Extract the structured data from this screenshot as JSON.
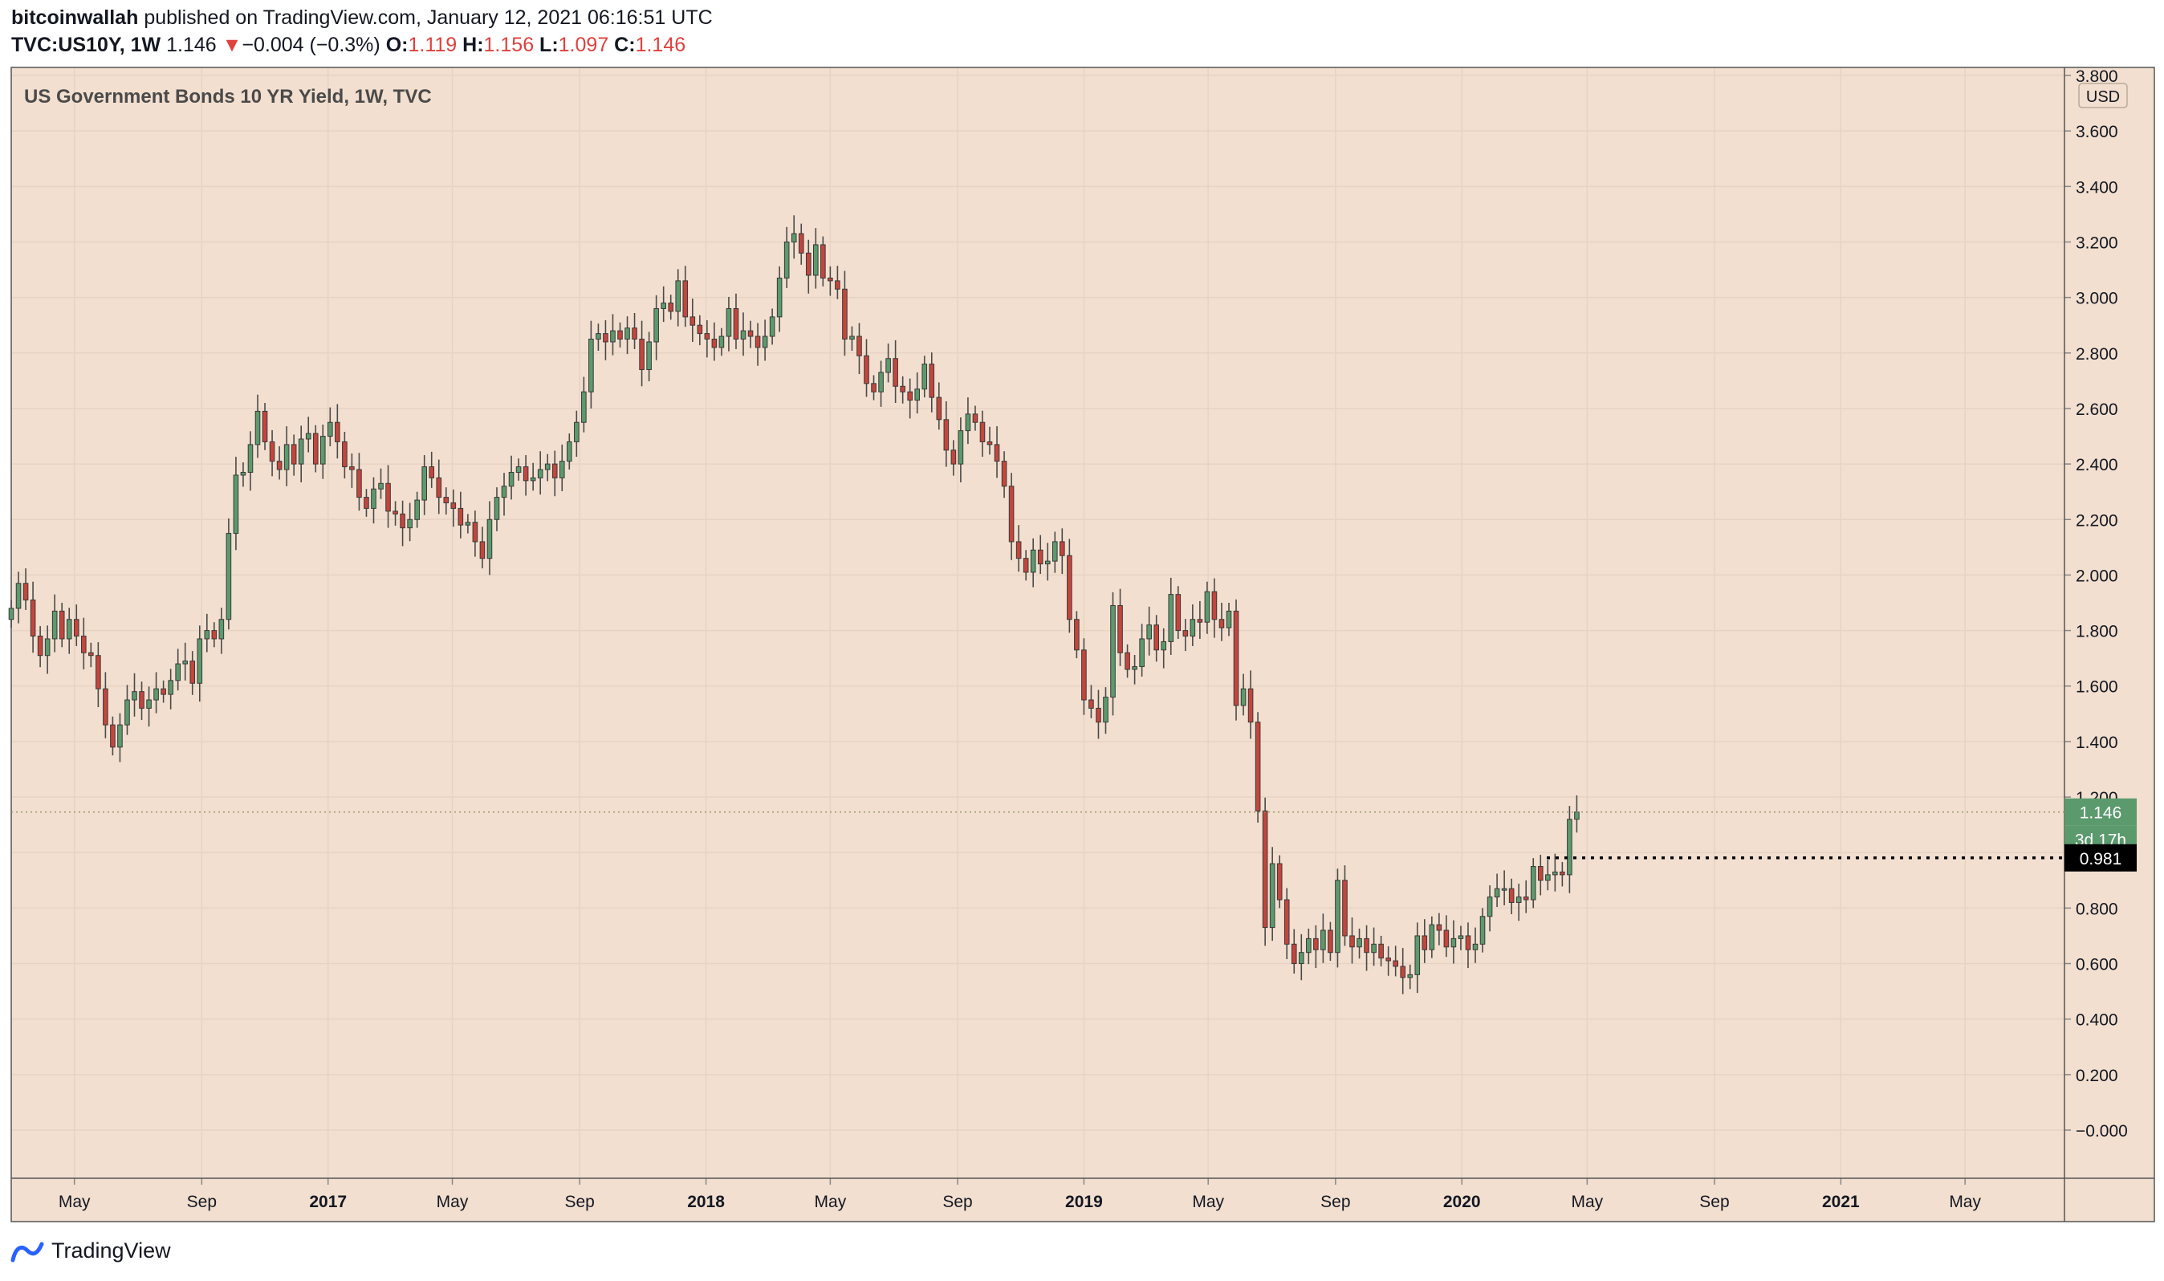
{
  "header": {
    "author": "bitcoinwallah",
    "published_text": "published on TradingView.com, January 12, 2021 06:16:51 UTC",
    "symbol": "TVC:US10Y, 1W",
    "last": "1.146",
    "change_arrow": "▼",
    "change": "−0.004 (−0.3%)",
    "o_label": "O:",
    "o_value": "1.119",
    "h_label": "H:",
    "h_value": "1.156",
    "l_label": "L:",
    "l_value": "1.097",
    "c_label": "C:",
    "c_value": "1.146"
  },
  "footer": {
    "brand": "TradingView",
    "logo_icon": "tradingview-logo-icon"
  },
  "colors": {
    "background": "#f2dfcf",
    "up": "#5b9a6d",
    "down": "#c4453d",
    "wick": "#4a4a4a",
    "grid": "#e8d3c3",
    "text": "#131722",
    "price_label_up": "#5b9a6d",
    "level_label": "#000000"
  },
  "chart_data": {
    "type": "candlestick",
    "title": "US Government Bonds 10 YR Yield, 1W, TVC",
    "currency": "USD",
    "ylim": [
      -0.18,
      3.8
    ],
    "y_ticks": [
      "3.800",
      "3.600",
      "3.400",
      "3.200",
      "3.000",
      "2.800",
      "2.600",
      "2.400",
      "2.200",
      "2.000",
      "1.800",
      "1.600",
      "1.400",
      "1.200",
      "1.000",
      "0.800",
      "0.600",
      "0.400",
      "0.200",
      "−0.000"
    ],
    "x_range": [
      "2016-03-01",
      "2021-08-05"
    ],
    "x_ticks": [
      {
        "date": "2016-05-01",
        "label": "May"
      },
      {
        "date": "2016-09-01",
        "label": "Sep"
      },
      {
        "date": "2017-01-01",
        "label": "2017"
      },
      {
        "date": "2017-05-01",
        "label": "May"
      },
      {
        "date": "2017-09-01",
        "label": "Sep"
      },
      {
        "date": "2018-01-01",
        "label": "2018"
      },
      {
        "date": "2018-05-01",
        "label": "May"
      },
      {
        "date": "2018-09-01",
        "label": "Sep"
      },
      {
        "date": "2019-01-01",
        "label": "2019"
      },
      {
        "date": "2019-05-01",
        "label": "May"
      },
      {
        "date": "2019-09-01",
        "label": "Sep"
      },
      {
        "date": "2020-01-01",
        "label": "2020"
      },
      {
        "date": "2020-05-01",
        "label": "May"
      },
      {
        "date": "2020-09-01",
        "label": "Sep"
      },
      {
        "date": "2021-01-01",
        "label": "2021"
      },
      {
        "date": "2021-05-01",
        "label": "May"
      }
    ],
    "first_candle_date": "2016-03-01",
    "candle_interval_days": 7,
    "closes": [
      1.88,
      1.97,
      1.91,
      1.78,
      1.71,
      1.77,
      1.87,
      1.77,
      1.84,
      1.78,
      1.72,
      1.71,
      1.59,
      1.46,
      1.38,
      1.46,
      1.55,
      1.58,
      1.52,
      1.55,
      1.59,
      1.57,
      1.62,
      1.68,
      1.69,
      1.61,
      1.77,
      1.8,
      1.77,
      1.84,
      2.15,
      2.36,
      2.37,
      2.47,
      2.59,
      2.48,
      2.41,
      2.38,
      2.47,
      2.4,
      2.49,
      2.51,
      2.4,
      2.5,
      2.55,
      2.48,
      2.39,
      2.38,
      2.28,
      2.24,
      2.31,
      2.33,
      2.23,
      2.22,
      2.17,
      2.2,
      2.27,
      2.39,
      2.35,
      2.28,
      2.26,
      2.24,
      2.18,
      2.19,
      2.12,
      2.06,
      2.2,
      2.28,
      2.32,
      2.37,
      2.39,
      2.34,
      2.35,
      2.38,
      2.4,
      2.35,
      2.41,
      2.48,
      2.55,
      2.66,
      2.85,
      2.87,
      2.84,
      2.88,
      2.85,
      2.89,
      2.85,
      2.74,
      2.84,
      2.96,
      2.98,
      2.95,
      3.06,
      2.93,
      2.9,
      2.87,
      2.85,
      2.82,
      2.86,
      2.96,
      2.85,
      2.88,
      2.86,
      2.82,
      2.86,
      2.93,
      3.07,
      3.2,
      3.23,
      3.16,
      3.08,
      3.19,
      3.07,
      3.06,
      3.03,
      2.85,
      2.86,
      2.79,
      2.69,
      2.66,
      2.73,
      2.78,
      2.68,
      2.66,
      2.63,
      2.67,
      2.76,
      2.64,
      2.56,
      2.45,
      2.4,
      2.52,
      2.58,
      2.55,
      2.48,
      2.47,
      2.41,
      2.32,
      2.12,
      2.06,
      2.01,
      2.09,
      2.04,
      2.05,
      2.12,
      2.07,
      1.84,
      1.73,
      1.55,
      1.52,
      1.47,
      1.56,
      1.89,
      1.72,
      1.66,
      1.67,
      1.77,
      1.82,
      1.73,
      1.76,
      1.93,
      1.8,
      1.78,
      1.84,
      1.83,
      1.94,
      1.84,
      1.81,
      1.87,
      1.53,
      1.59,
      1.47,
      1.15,
      0.73,
      0.96,
      0.83,
      0.67,
      0.6,
      0.64,
      0.69,
      0.65,
      0.72,
      0.64,
      0.9,
      0.7,
      0.66,
      0.69,
      0.64,
      0.67,
      0.62,
      0.61,
      0.59,
      0.55,
      0.56,
      0.7,
      0.65,
      0.74,
      0.72,
      0.66,
      0.69,
      0.7,
      0.65,
      0.67,
      0.77,
      0.84,
      0.87,
      0.87,
      0.82,
      0.84,
      0.83,
      0.95,
      0.9,
      0.92,
      0.93,
      0.92,
      1.12,
      1.146
    ],
    "last_price": "1.146",
    "countdown": "3d 17h",
    "horizontal_level": {
      "value": 0.981,
      "label": "0.981",
      "start_date": "2020-03-23"
    }
  }
}
